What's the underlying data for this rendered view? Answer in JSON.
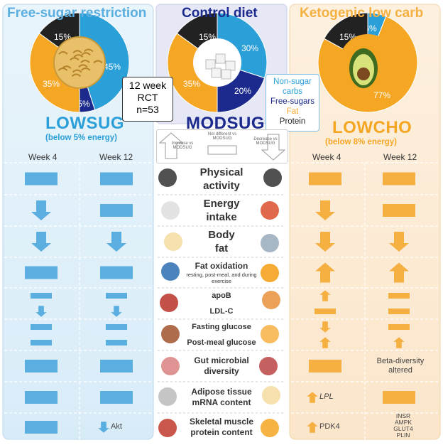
{
  "columns": {
    "left": {
      "title": "Free-sugar restriction",
      "arm": "LOWSUG",
      "sub": "(below 5% energy)",
      "color": "#5aaee0"
    },
    "center": {
      "title": "Control diet",
      "arm": "MODSUG",
      "color": "#1b2a8c"
    },
    "right": {
      "title": "Ketogenic low carb",
      "arm": "LOWCHO",
      "sub": "(below 8% energy)",
      "color": "#f5b041"
    }
  },
  "pies": {
    "left": [
      {
        "label": "45%",
        "color": "#2b9fd8"
      },
      {
        "label": "5%",
        "color": "#1b2a8c"
      },
      {
        "label": "35%",
        "color": "#f5a623"
      },
      {
        "label": "15%",
        "color": "#222222"
      }
    ],
    "center": [
      {
        "label": "30%",
        "color": "#2b9fd8"
      },
      {
        "label": "20%",
        "color": "#1b2a8c"
      },
      {
        "label": "35%",
        "color": "#f5a623"
      },
      {
        "label": "15%",
        "color": "#222222"
      }
    ],
    "right": [
      {
        "label": "6%",
        "color": "#2b9fd8"
      },
      {
        "label": "77%",
        "color": "#f5a623"
      },
      {
        "label": "15%",
        "color": "#222222"
      }
    ]
  },
  "rct": {
    "line1": "12 week",
    "line2": "RCT",
    "line3": "n=53"
  },
  "legend": {
    "nonsugar": "Non-sugar carbs",
    "freesugars": "Free-sugars",
    "fat": "Fat",
    "protein": "Protein"
  },
  "key": {
    "increase": "Increase vs MODSUG",
    "nodiff": "Not different vs MODSUG",
    "decrease": "Decrease vs MODSUG"
  },
  "weeks": {
    "w4": "Week 4",
    "w12": "Week 12"
  },
  "rows": [
    {
      "label": "Physical activity",
      "lines": [
        "Physical",
        "activity"
      ],
      "l4": "bar",
      "l12": "bar",
      "r4": "bar",
      "r12": "bar"
    },
    {
      "label": "Energy intake",
      "lines": [
        "Energy",
        "intake"
      ],
      "l4": "down",
      "l12": "bar",
      "r4": "down",
      "r12": "bar"
    },
    {
      "label": "Body fat",
      "lines": [
        "Body",
        "fat"
      ],
      "l4": "down",
      "l12": "down",
      "r4": "down",
      "r12": "down"
    },
    {
      "label": "Fat oxidation",
      "lines": [
        "Fat oxidation"
      ],
      "small": "resting, post-meal, and during exercise",
      "l4": "bar",
      "l12": "bar",
      "r4": "up",
      "r12": "up"
    },
    {
      "label": "apoB",
      "lines": [
        "apoB"
      ],
      "l4": "bar",
      "l12": "bar",
      "r4": "up",
      "r12": "bar"
    },
    {
      "label": "LDL-C",
      "lines": [
        "LDL-C"
      ],
      "l4": "down",
      "l12": "down",
      "r4": "bar",
      "r12": "bar"
    },
    {
      "label": "Fasting glucose",
      "lines": [
        "Fasting glucose"
      ],
      "l4": "bar",
      "l12": "bar",
      "r4": "down",
      "r12": "bar"
    },
    {
      "label": "Post-meal glucose",
      "lines": [
        "Post-meal glucose"
      ],
      "l4": "bar",
      "l12": "bar",
      "r4": "up",
      "r12": "up"
    },
    {
      "label": "Gut microbial diversity",
      "lines": [
        "Gut microbial",
        "diversity"
      ],
      "l4": "bar",
      "l12": "bar",
      "r4": "bar",
      "r12_text": "Beta-diversity altered"
    },
    {
      "label": "Adipose tissue mRNA content",
      "lines": [
        "Adipose tissue",
        "mRNA content"
      ],
      "l4": "bar",
      "l12": "bar",
      "r4_text": "LPL",
      "r12": "bar"
    },
    {
      "label": "Skeletal muscle protein content",
      "lines": [
        "Skeletal muscle",
        "protein content"
      ],
      "l4": "bar",
      "l12_text": "Akt",
      "r4_text": "PDK4",
      "r12_text": "INSR AMPK GLUT4 PLIN"
    }
  ]
}
